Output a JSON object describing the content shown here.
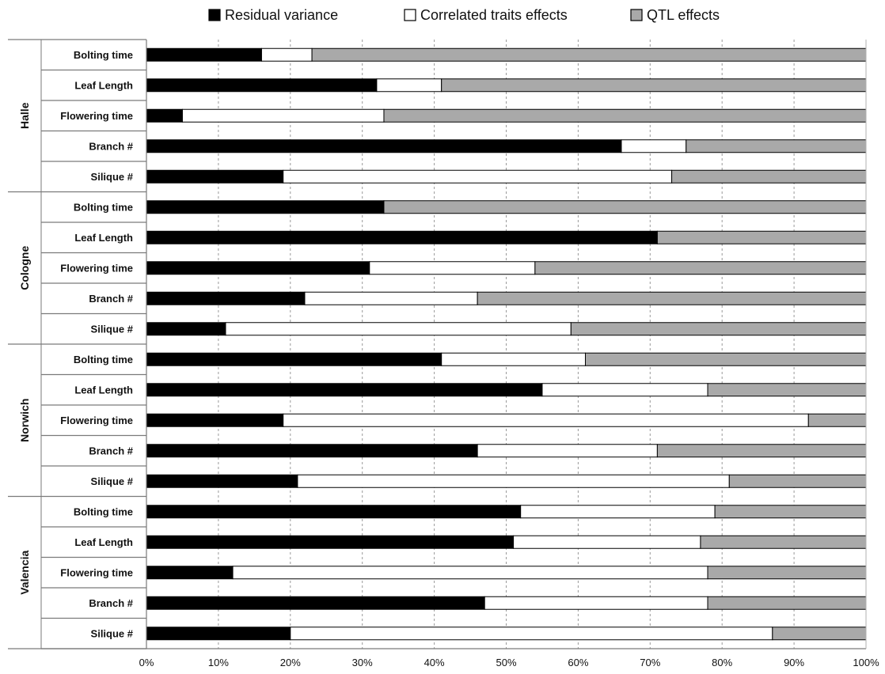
{
  "chart_data": {
    "type": "bar",
    "orientation": "horizontal",
    "stacked": true,
    "percent_scale": true,
    "xlim": [
      0,
      100
    ],
    "x_ticks": [
      "0%",
      "10%",
      "20%",
      "30%",
      "40%",
      "50%",
      "60%",
      "70%",
      "80%",
      "90%",
      "100%"
    ],
    "grid": "vertical dashed",
    "legend_position": "top",
    "legend": [
      {
        "label": "Residual variance",
        "color": "#000000"
      },
      {
        "label": "Correlated traits effects",
        "color": "#ffffff"
      },
      {
        "label": "QTL effects",
        "color": "#a9a9a9"
      }
    ],
    "groups": [
      {
        "name": "Halle",
        "bars": [
          {
            "label": "Bolting time",
            "values": [
              16,
              7,
              77
            ]
          },
          {
            "label": "Leaf Length",
            "values": [
              32,
              9,
              59
            ]
          },
          {
            "label": "Flowering time",
            "values": [
              5,
              28,
              67
            ]
          },
          {
            "label": "Branch #",
            "values": [
              66,
              9,
              25
            ]
          },
          {
            "label": "Silique #",
            "values": [
              19,
              54,
              27
            ]
          }
        ]
      },
      {
        "name": "Cologne",
        "bars": [
          {
            "label": "Bolting time",
            "values": [
              33,
              0,
              67
            ]
          },
          {
            "label": "Leaf Length",
            "values": [
              71,
              0,
              29
            ]
          },
          {
            "label": "Flowering time",
            "values": [
              31,
              23,
              46
            ]
          },
          {
            "label": "Branch #",
            "values": [
              22,
              24,
              54
            ]
          },
          {
            "label": "Silique #",
            "values": [
              11,
              48,
              41
            ]
          }
        ]
      },
      {
        "name": "Norwich",
        "bars": [
          {
            "label": "Bolting time",
            "values": [
              41,
              20,
              39
            ]
          },
          {
            "label": "Leaf Length",
            "values": [
              55,
              23,
              22
            ]
          },
          {
            "label": "Flowering time",
            "values": [
              19,
              73,
              8
            ]
          },
          {
            "label": "Branch #",
            "values": [
              46,
              25,
              29
            ]
          },
          {
            "label": "Silique #",
            "values": [
              21,
              60,
              19
            ]
          }
        ]
      },
      {
        "name": "Valencia",
        "bars": [
          {
            "label": "Bolting time",
            "values": [
              52,
              27,
              21
            ]
          },
          {
            "label": "Leaf Length",
            "values": [
              51,
              26,
              23
            ]
          },
          {
            "label": "Flowering time",
            "values": [
              12,
              66,
              22
            ]
          },
          {
            "label": "Branch #",
            "values": [
              47,
              31,
              22
            ]
          },
          {
            "label": "Silique #",
            "values": [
              20,
              67,
              13
            ]
          }
        ]
      }
    ]
  }
}
